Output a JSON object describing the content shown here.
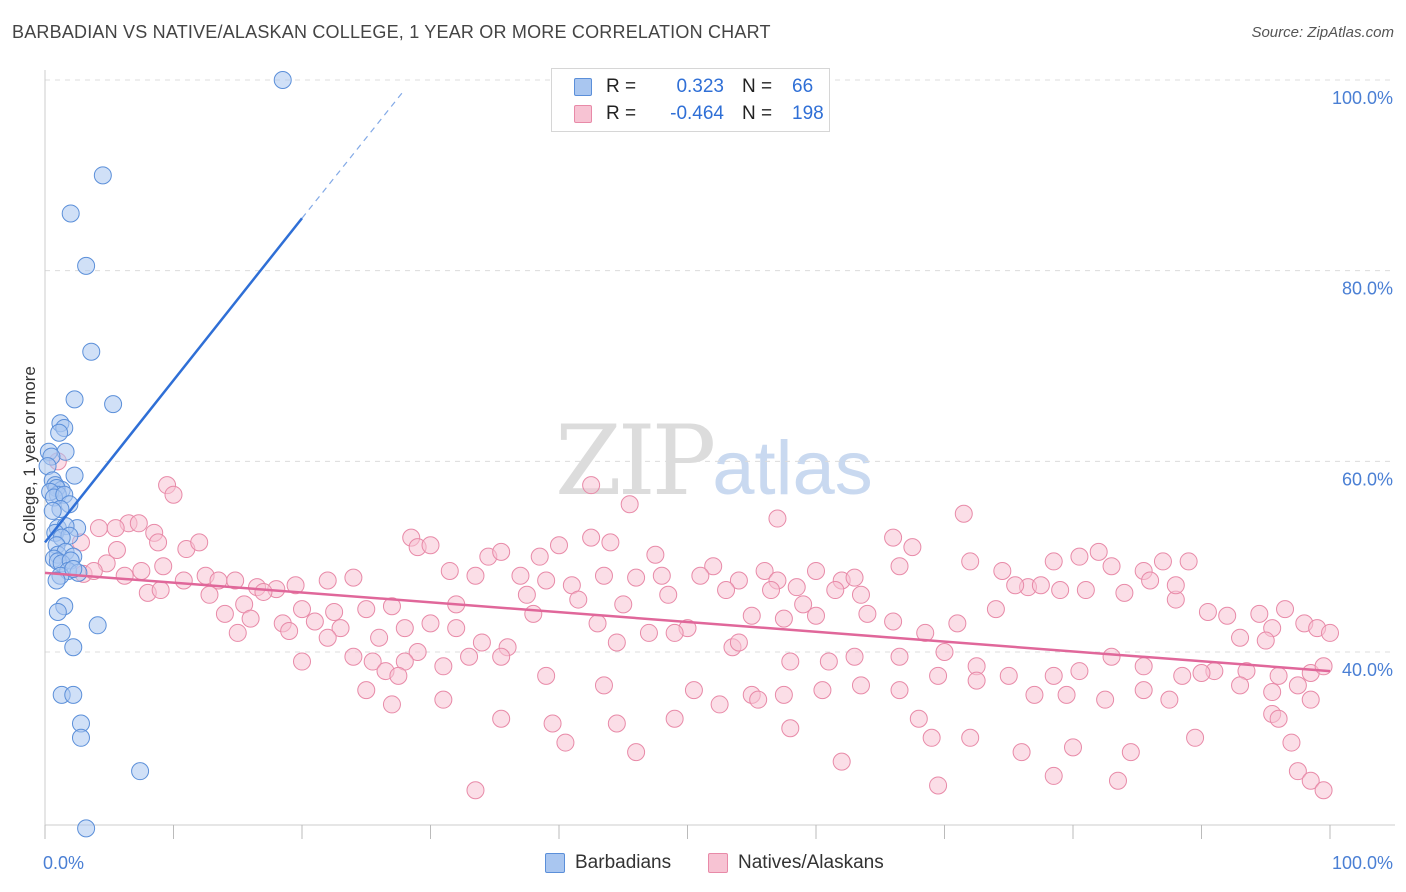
{
  "title": "BARBADIAN VS NATIVE/ALASKAN COLLEGE, 1 YEAR OR MORE CORRELATION CHART",
  "source": "Source: ZipAtlas.com",
  "watermark": {
    "zip": "ZIP",
    "atlas": "atlas"
  },
  "colors": {
    "blue_fill": "#a9c6f0",
    "blue_stroke": "#5b8fd9",
    "blue_line": "#2f6fd6",
    "pink_fill": "#f7c3d3",
    "pink_stroke": "#e88aa8",
    "pink_line": "#e0679a",
    "accent_text": "#4a7fd4",
    "grid": "#dcdcdc"
  },
  "legend": {
    "rows": [
      {
        "r_label": "R =",
        "r_value": "0.323",
        "n_label": "N =",
        "n_value": "66"
      },
      {
        "r_label": "R =",
        "r_value": "-0.464",
        "n_label": "N =",
        "n_value": "198"
      }
    ]
  },
  "bottom_legend": [
    {
      "label": "Barbadians"
    },
    {
      "label": "Natives/Alaskans"
    }
  ],
  "chart_data": {
    "type": "scatter",
    "title": "BARBADIAN VS NATIVE/ALASKAN COLLEGE, 1 YEAR OR MORE CORRELATION CHART",
    "xlabel": "",
    "ylabel": "College, 1 year or more",
    "xlim": [
      0,
      100
    ],
    "ylim": [
      21,
      102
    ],
    "x_tick_labels": [
      "0.0%",
      "100.0%"
    ],
    "y_tick_values": [
      40,
      60,
      80,
      100
    ],
    "y_tick_labels": [
      "40.0%",
      "60.0%",
      "80.0%",
      "100.0%"
    ],
    "grid": true,
    "series": [
      {
        "name": "Barbadians",
        "R": 0.323,
        "N": 66,
        "trend": {
          "x": [
            0,
            20
          ],
          "y": [
            51.5,
            85.5
          ],
          "dashed_to": {
            "x": 28,
            "y": 99
          }
        },
        "points": [
          [
            18.5,
            100
          ],
          [
            4.5,
            90
          ],
          [
            2,
            86
          ],
          [
            3.2,
            80.5
          ],
          [
            3.6,
            71.5
          ],
          [
            2.3,
            66.5
          ],
          [
            5.3,
            66
          ],
          [
            1.2,
            64
          ],
          [
            1.5,
            63.5
          ],
          [
            1.1,
            63
          ],
          [
            1.6,
            61
          ],
          [
            0.3,
            61
          ],
          [
            0.5,
            60.5
          ],
          [
            0.2,
            59.5
          ],
          [
            2.3,
            58.5
          ],
          [
            0.6,
            58
          ],
          [
            0.8,
            57.5
          ],
          [
            1.3,
            57
          ],
          [
            0.9,
            57.2
          ],
          [
            1.0,
            56.5
          ],
          [
            0.4,
            56.8
          ],
          [
            0.7,
            56.2
          ],
          [
            1.5,
            56.5
          ],
          [
            1.9,
            55.5
          ],
          [
            1.2,
            55
          ],
          [
            0.6,
            54.8
          ],
          [
            2.5,
            53
          ],
          [
            1.0,
            53
          ],
          [
            1.6,
            53.2
          ],
          [
            0.8,
            52.5
          ],
          [
            1.9,
            52.2
          ],
          [
            1.3,
            52
          ],
          [
            0.9,
            51.2
          ],
          [
            1.0,
            50.2
          ],
          [
            1.6,
            50.5
          ],
          [
            2.2,
            50
          ],
          [
            0.7,
            49.8
          ],
          [
            1.0,
            49.5
          ],
          [
            1.3,
            49.3
          ],
          [
            2.0,
            49.6
          ],
          [
            1.8,
            48.5
          ],
          [
            2.6,
            48.3
          ],
          [
            1.2,
            48
          ],
          [
            0.9,
            47.5
          ],
          [
            2.2,
            48.7
          ],
          [
            1.5,
            44.8
          ],
          [
            1.0,
            44.2
          ],
          [
            4.1,
            42.8
          ],
          [
            1.3,
            42
          ],
          [
            2.2,
            40.5
          ],
          [
            1.3,
            35.5
          ],
          [
            2.2,
            35.5
          ],
          [
            2.8,
            32.5
          ],
          [
            2.8,
            31
          ],
          [
            7.4,
            27.5
          ],
          [
            3.2,
            21.5
          ]
        ]
      },
      {
        "name": "Natives/Alaskans",
        "R": -0.464,
        "N": 198,
        "trend": {
          "x": [
            0,
            100
          ],
          "y": [
            48.3,
            38.0
          ]
        },
        "points": [
          [
            1.0,
            60
          ],
          [
            9.5,
            57.5
          ],
          [
            10,
            56.5
          ],
          [
            4.2,
            53
          ],
          [
            6.5,
            53.5
          ],
          [
            5.5,
            53
          ],
          [
            7.3,
            53.5
          ],
          [
            8.5,
            52.5
          ],
          [
            2.8,
            51.5
          ],
          [
            11.0,
            50.8
          ],
          [
            5.6,
            50.7
          ],
          [
            8.8,
            51.5
          ],
          [
            12.0,
            51.5
          ],
          [
            4.8,
            49.3
          ],
          [
            3.0,
            48.2
          ],
          [
            3.8,
            48.5
          ],
          [
            6.2,
            48
          ],
          [
            7.5,
            48.5
          ],
          [
            9.2,
            49
          ],
          [
            10.8,
            47.5
          ],
          [
            12.5,
            48
          ],
          [
            13.5,
            47.5
          ],
          [
            14.8,
            47.5
          ],
          [
            16.5,
            46.8
          ],
          [
            18.0,
            46.6
          ],
          [
            19.5,
            47
          ],
          [
            22.0,
            47.5
          ],
          [
            24.0,
            47.8
          ],
          [
            8.0,
            46.2
          ],
          [
            9.0,
            46.5
          ],
          [
            12.8,
            46
          ],
          [
            15.5,
            45
          ],
          [
            17.0,
            46.3
          ],
          [
            20.0,
            44.5
          ],
          [
            22.5,
            44.2
          ],
          [
            25.0,
            44.5
          ],
          [
            27.0,
            44.8
          ],
          [
            14.0,
            44
          ],
          [
            16.0,
            43.5
          ],
          [
            18.5,
            43
          ],
          [
            21.0,
            43.2
          ],
          [
            23.0,
            42.5
          ],
          [
            15.0,
            42
          ],
          [
            19.0,
            42.2
          ],
          [
            22.0,
            41.5
          ],
          [
            26.0,
            41.5
          ],
          [
            28.0,
            42.5
          ],
          [
            30.0,
            43
          ],
          [
            32.0,
            42.5
          ],
          [
            34.0,
            41
          ],
          [
            36.0,
            40.5
          ],
          [
            29.0,
            40
          ],
          [
            33.0,
            39.5
          ],
          [
            35.5,
            39.5
          ],
          [
            20.0,
            39
          ],
          [
            24.0,
            39.5
          ],
          [
            25.5,
            39
          ],
          [
            28.0,
            39
          ],
          [
            31.0,
            38.5
          ],
          [
            26.5,
            38
          ],
          [
            27.5,
            37.5
          ],
          [
            25.0,
            36
          ],
          [
            27.0,
            34.5
          ],
          [
            28.5,
            52
          ],
          [
            29.0,
            51
          ],
          [
            30.0,
            51.2
          ],
          [
            34.5,
            50
          ],
          [
            35.5,
            50.5
          ],
          [
            38.5,
            50
          ],
          [
            40.0,
            51.2
          ],
          [
            42.5,
            52
          ],
          [
            44.0,
            51.5
          ],
          [
            47.5,
            50.2
          ],
          [
            52.0,
            49
          ],
          [
            56.0,
            48.5
          ],
          [
            60.0,
            48.5
          ],
          [
            62.0,
            47.5
          ],
          [
            31.5,
            48.5
          ],
          [
            33.5,
            48
          ],
          [
            37.0,
            48
          ],
          [
            39.0,
            47.5
          ],
          [
            41.0,
            47
          ],
          [
            43.5,
            48
          ],
          [
            46.0,
            47.8
          ],
          [
            48.0,
            48
          ],
          [
            51.0,
            48
          ],
          [
            54.0,
            47.5
          ],
          [
            57.0,
            47.5
          ],
          [
            58.5,
            46.8
          ],
          [
            61.5,
            46.5
          ],
          [
            63.5,
            46
          ],
          [
            37.5,
            46
          ],
          [
            41.5,
            45.5
          ],
          [
            45.0,
            45
          ],
          [
            48.5,
            46
          ],
          [
            53.0,
            46.5
          ],
          [
            56.5,
            46.5
          ],
          [
            59.0,
            45
          ],
          [
            32.0,
            45
          ],
          [
            38.0,
            44
          ],
          [
            43.0,
            43
          ],
          [
            47.0,
            42
          ],
          [
            50.0,
            42.5
          ],
          [
            55.0,
            43.8
          ],
          [
            57.5,
            43.5
          ],
          [
            60.0,
            43.8
          ],
          [
            64.0,
            44
          ],
          [
            66.0,
            43.2
          ],
          [
            68.5,
            42
          ],
          [
            71.0,
            43
          ],
          [
            74.0,
            44.5
          ],
          [
            76.5,
            46.8
          ],
          [
            79.0,
            46.5
          ],
          [
            81.0,
            46.5
          ],
          [
            84.0,
            46.2
          ],
          [
            88.0,
            45.5
          ],
          [
            90.5,
            44.2
          ],
          [
            92.0,
            43.8
          ],
          [
            94.5,
            44
          ],
          [
            96.5,
            44.5
          ],
          [
            98.0,
            43
          ],
          [
            95.5,
            42.5
          ],
          [
            93.0,
            41.5
          ],
          [
            95.0,
            41.2
          ],
          [
            99.0,
            42.5
          ],
          [
            100.0,
            42
          ],
          [
            44.5,
            41
          ],
          [
            49.0,
            42
          ],
          [
            53.5,
            40.5
          ],
          [
            54.0,
            41
          ],
          [
            58.0,
            39
          ],
          [
            61.0,
            39
          ],
          [
            63.0,
            39.5
          ],
          [
            66.5,
            39.5
          ],
          [
            70.0,
            40
          ],
          [
            72.5,
            38.5
          ],
          [
            75.0,
            37.5
          ],
          [
            78.5,
            37.5
          ],
          [
            80.5,
            38
          ],
          [
            83.0,
            39.5
          ],
          [
            85.5,
            38.5
          ],
          [
            88.5,
            37.5
          ],
          [
            91.0,
            38
          ],
          [
            93.5,
            38
          ],
          [
            96.0,
            37.5
          ],
          [
            98.5,
            37.8
          ],
          [
            99.5,
            38.5
          ],
          [
            45.5,
            55.5
          ],
          [
            42.5,
            57.5
          ],
          [
            57.0,
            54
          ],
          [
            71.5,
            54.5
          ],
          [
            66.0,
            52
          ],
          [
            67.5,
            51
          ],
          [
            72.0,
            49.5
          ],
          [
            74.5,
            48.5
          ],
          [
            78.5,
            49.5
          ],
          [
            80.5,
            50
          ],
          [
            83.0,
            49
          ],
          [
            85.5,
            48.5
          ],
          [
            87.0,
            49.5
          ],
          [
            82.0,
            50.5
          ],
          [
            75.5,
            47
          ],
          [
            77.5,
            47
          ],
          [
            63.0,
            47.8
          ],
          [
            88.0,
            47
          ],
          [
            89.0,
            49.5
          ],
          [
            86.0,
            47.5
          ],
          [
            66.5,
            49
          ],
          [
            39.0,
            37.5
          ],
          [
            43.5,
            36.5
          ],
          [
            50.5,
            36
          ],
          [
            52.5,
            34.5
          ],
          [
            55.0,
            35.5
          ],
          [
            57.5,
            35.5
          ],
          [
            60.5,
            36
          ],
          [
            63.5,
            36.5
          ],
          [
            66.5,
            36
          ],
          [
            69.5,
            37.5
          ],
          [
            72.5,
            37
          ],
          [
            77.0,
            35.5
          ],
          [
            79.5,
            35.5
          ],
          [
            82.5,
            35
          ],
          [
            85.5,
            36
          ],
          [
            87.5,
            35
          ],
          [
            90.0,
            37.8
          ],
          [
            93.0,
            36.5
          ],
          [
            95.5,
            35.8
          ],
          [
            97.5,
            36.5
          ],
          [
            98.5,
            35
          ],
          [
            31.0,
            35
          ],
          [
            35.5,
            33
          ],
          [
            39.5,
            32.5
          ],
          [
            44.5,
            32.5
          ],
          [
            49.0,
            33
          ],
          [
            55.5,
            35
          ],
          [
            58.0,
            32
          ],
          [
            68.0,
            33
          ],
          [
            69.0,
            31
          ],
          [
            72.0,
            31
          ],
          [
            76.0,
            29.5
          ],
          [
            80.0,
            30
          ],
          [
            84.5,
            29.5
          ],
          [
            89.5,
            31
          ],
          [
            95.5,
            33.5
          ],
          [
            96.0,
            33
          ],
          [
            97.0,
            30.5
          ],
          [
            97.5,
            27.5
          ],
          [
            98.5,
            26.5
          ],
          [
            99.5,
            25.5
          ],
          [
            40.5,
            30.5
          ],
          [
            46.0,
            29.5
          ],
          [
            62.0,
            28.5
          ],
          [
            69.5,
            26
          ],
          [
            78.5,
            27
          ],
          [
            83.5,
            26.5
          ],
          [
            33.5,
            25.5
          ]
        ]
      }
    ]
  }
}
